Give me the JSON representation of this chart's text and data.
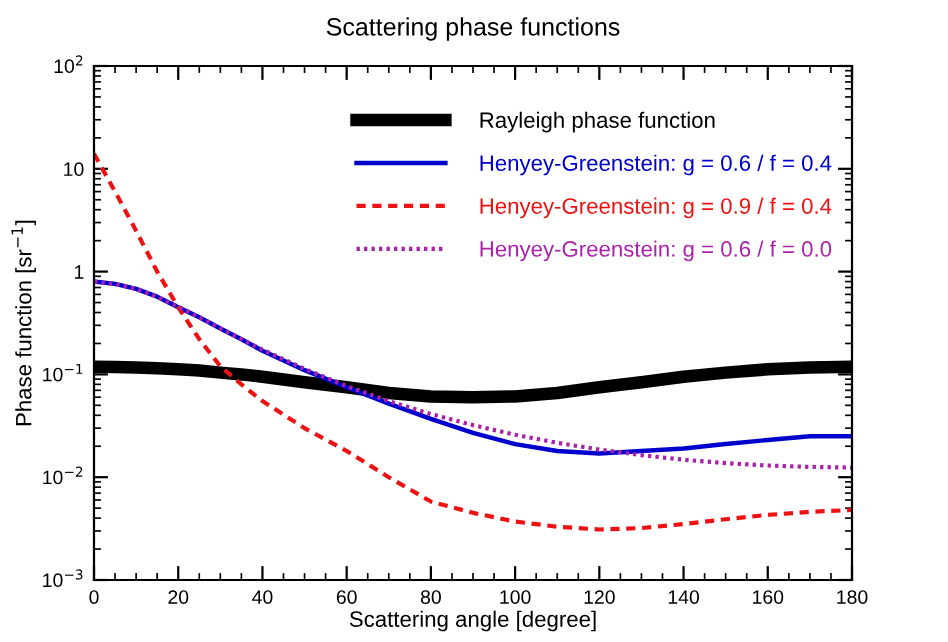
{
  "chart_data": {
    "type": "line",
    "title": "Scattering phase functions",
    "xlabel": "Scattering angle [degree]",
    "ylabel": "Phase function [sr$^{−1}$]",
    "x": [
      0,
      5,
      10,
      15,
      20,
      25,
      30,
      35,
      40,
      50,
      60,
      70,
      80,
      90,
      100,
      110,
      120,
      130,
      140,
      150,
      160,
      170,
      180
    ],
    "series": [
      {
        "name": "Rayleigh phase function",
        "color": "#000000",
        "line_style": "solid",
        "values": [
          0.119,
          0.118,
          0.117,
          0.115,
          0.112,
          0.109,
          0.104,
          0.1,
          0.095,
          0.084,
          0.075,
          0.066,
          0.061,
          0.06,
          0.061,
          0.066,
          0.075,
          0.084,
          0.095,
          0.104,
          0.112,
          0.117,
          0.119
        ]
      },
      {
        "name": "Henyey-Greenstein: g = 0.6 / f = 0.4",
        "color": "#0000cc",
        "line_style": "solid",
        "values": [
          0.8,
          0.76,
          0.68,
          0.57,
          0.45,
          0.36,
          0.28,
          0.22,
          0.17,
          0.11,
          0.075,
          0.052,
          0.037,
          0.027,
          0.021,
          0.018,
          0.017,
          0.018,
          0.019,
          0.021,
          0.023,
          0.025,
          0.025
        ]
      },
      {
        "name": "Henyey-Greenstein: g = 0.9 / f = 0.4",
        "color": "#ee1111",
        "line_style": "dashed",
        "values": [
          14,
          6,
          2.5,
          1.0,
          0.45,
          0.22,
          0.12,
          0.08,
          0.055,
          0.03,
          0.018,
          0.01,
          0.0058,
          0.0045,
          0.0037,
          0.0033,
          0.0031,
          0.0032,
          0.0035,
          0.0039,
          0.0043,
          0.0046,
          0.0048
        ]
      },
      {
        "name": "Henyey-Greenstein: g = 0.6 / f = 0.0",
        "color": "#aa22aa",
        "line_style": "dotted",
        "values": [
          0.796,
          0.76,
          0.677,
          0.57,
          0.455,
          0.36,
          0.28,
          0.22,
          0.174,
          0.113,
          0.0769,
          0.055,
          0.0412,
          0.0321,
          0.0259,
          0.0216,
          0.0186,
          0.0164,
          0.0148,
          0.0137,
          0.013,
          0.0126,
          0.0124
        ]
      }
    ],
    "xlim": [
      0,
      180
    ],
    "xticks": [
      0,
      20,
      40,
      60,
      80,
      100,
      120,
      140,
      160,
      180
    ],
    "ylim": [
      0.001,
      100
    ],
    "log": true,
    "yticks": [
      {
        "value": 0.001,
        "label": "10$^{−3}$"
      },
      {
        "value": 0.01,
        "label": "10$^{−2}$"
      },
      {
        "value": 0.1,
        "label": "10$^{−1}$"
      },
      1,
      10,
      {
        "value": 100,
        "label": "10$^{2}$"
      }
    ],
    "grid": false,
    "legend": "top right",
    "marker": "none"
  }
}
